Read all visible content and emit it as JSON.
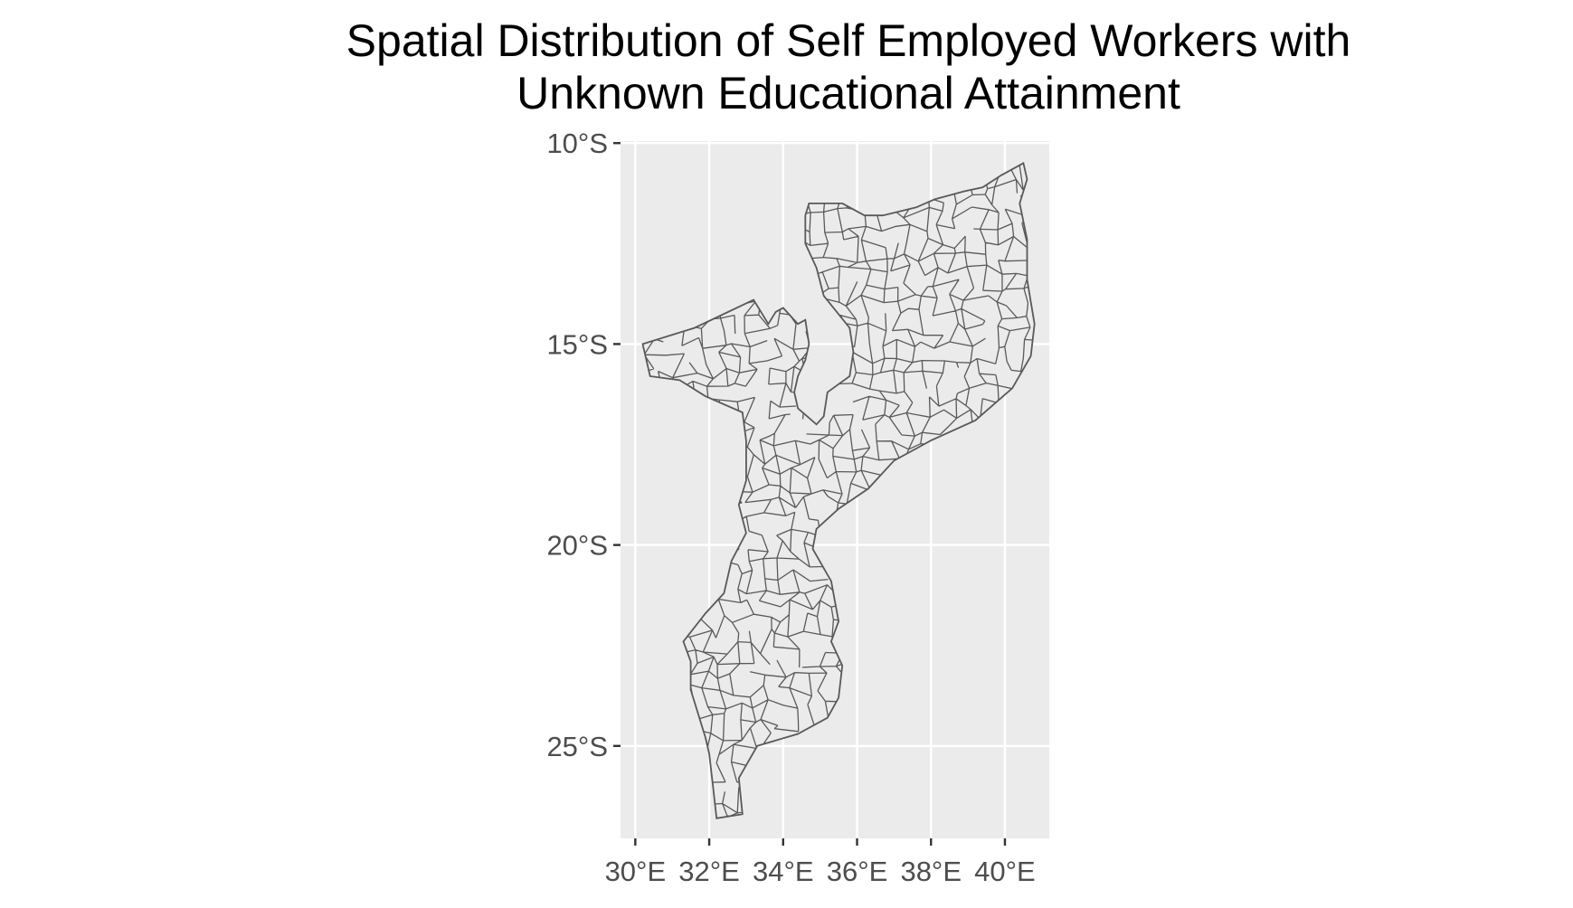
{
  "title_lines": [
    "Spatial Distribution of Self Employed Workers with",
    "Unknown Educational Attainment"
  ],
  "chart_data": {
    "type": "map",
    "region": "Mozambique administrative units",
    "title": "Spatial Distribution of Self Employed Workers with Unknown Educational Attainment",
    "xlabel": "",
    "ylabel": "",
    "xlim": [
      29.6,
      41.2
    ],
    "ylim": [
      -27.3,
      -9.95
    ],
    "x_ticks": [
      {
        "value": 30,
        "label": "30°E"
      },
      {
        "value": 32,
        "label": "32°E"
      },
      {
        "value": 34,
        "label": "34°E"
      },
      {
        "value": 36,
        "label": "36°E"
      },
      {
        "value": 38,
        "label": "38°E"
      },
      {
        "value": 40,
        "label": "40°E"
      }
    ],
    "y_ticks": [
      {
        "value": -10,
        "label": "10°S"
      },
      {
        "value": -15,
        "label": "15°S"
      },
      {
        "value": -20,
        "label": "20°S"
      },
      {
        "value": -25,
        "label": "25°S"
      }
    ],
    "grid": true,
    "legend": "none",
    "panel_color": "#ebebeb",
    "grid_color": "#ffffff",
    "border_color": "#595959",
    "fill_color": "#ebebeb",
    "outline": [
      [
        30.2,
        -15.0
      ],
      [
        31.6,
        -14.6
      ],
      [
        33.2,
        -13.9
      ],
      [
        33.6,
        -14.5
      ],
      [
        33.8,
        -14.2
      ],
      [
        34.0,
        -14.1
      ],
      [
        34.4,
        -14.5
      ],
      [
        34.6,
        -14.4
      ],
      [
        34.7,
        -15.0
      ],
      [
        34.6,
        -15.4
      ],
      [
        34.4,
        -15.8
      ],
      [
        34.3,
        -16.2
      ],
      [
        34.4,
        -16.6
      ],
      [
        34.9,
        -17.0
      ],
      [
        35.1,
        -16.8
      ],
      [
        35.2,
        -16.2
      ],
      [
        35.8,
        -15.8
      ],
      [
        35.9,
        -15.2
      ],
      [
        35.8,
        -14.6
      ],
      [
        35.1,
        -13.8
      ],
      [
        34.9,
        -13.1
      ],
      [
        34.6,
        -12.5
      ],
      [
        34.6,
        -11.8
      ],
      [
        34.7,
        -11.5
      ],
      [
        35.6,
        -11.5
      ],
      [
        36.2,
        -11.8
      ],
      [
        36.7,
        -11.8
      ],
      [
        37.6,
        -11.6
      ],
      [
        38.1,
        -11.4
      ],
      [
        38.9,
        -11.2
      ],
      [
        39.4,
        -11.1
      ],
      [
        39.9,
        -10.8
      ],
      [
        40.5,
        -10.5
      ],
      [
        40.6,
        -10.9
      ],
      [
        40.4,
        -11.5
      ],
      [
        40.6,
        -12.4
      ],
      [
        40.6,
        -13.4
      ],
      [
        40.8,
        -14.5
      ],
      [
        40.7,
        -15.3
      ],
      [
        40.2,
        -16.1
      ],
      [
        39.2,
        -16.9
      ],
      [
        38.0,
        -17.4
      ],
      [
        37.0,
        -17.9
      ],
      [
        36.3,
        -18.6
      ],
      [
        35.5,
        -19.1
      ],
      [
        34.9,
        -19.6
      ],
      [
        34.8,
        -20.1
      ],
      [
        35.3,
        -20.9
      ],
      [
        35.5,
        -21.9
      ],
      [
        35.3,
        -22.4
      ],
      [
        35.6,
        -23.0
      ],
      [
        35.5,
        -23.8
      ],
      [
        35.2,
        -24.3
      ],
      [
        34.4,
        -24.7
      ],
      [
        33.3,
        -25.0
      ],
      [
        32.8,
        -25.8
      ],
      [
        32.9,
        -26.7
      ],
      [
        32.2,
        -26.8
      ],
      [
        32.1,
        -26.0
      ],
      [
        32.0,
        -25.2
      ],
      [
        31.9,
        -24.8
      ],
      [
        31.5,
        -23.6
      ],
      [
        31.5,
        -22.9
      ],
      [
        31.3,
        -22.4
      ],
      [
        31.9,
        -21.7
      ],
      [
        32.4,
        -21.2
      ],
      [
        32.6,
        -20.4
      ],
      [
        33.0,
        -19.7
      ],
      [
        32.8,
        -19.0
      ],
      [
        33.0,
        -18.4
      ],
      [
        33.0,
        -17.4
      ],
      [
        32.9,
        -16.7
      ],
      [
        31.9,
        -16.3
      ],
      [
        31.2,
        -15.9
      ],
      [
        30.4,
        -15.8
      ],
      [
        30.2,
        -15.0
      ]
    ]
  }
}
